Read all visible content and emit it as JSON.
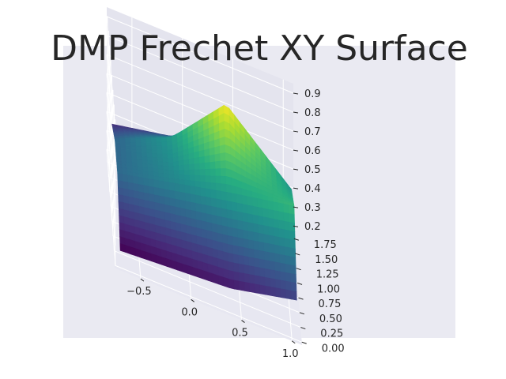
{
  "chart_data": {
    "type": "surface",
    "title": "DMP Frechet XY Surface",
    "xlabel": "",
    "ylabel": "",
    "zlabel": "",
    "xlim": [
      -0.75,
      1.1
    ],
    "ylim": [
      -0.05,
      1.9
    ],
    "zlim": [
      0.18,
      0.95
    ],
    "x_ticks": [
      -0.5,
      0.0,
      0.5,
      1.0
    ],
    "x_tick_labels": [
      "−0.5",
      "0.0",
      "0.5",
      "1.0"
    ],
    "y_ticks": [
      0.0,
      0.25,
      0.5,
      0.75,
      1.0,
      1.25,
      1.5,
      1.75
    ],
    "y_tick_labels": [
      "0.00",
      "0.25",
      "0.50",
      "0.75",
      "1.00",
      "1.25",
      "1.50",
      "1.75"
    ],
    "z_ticks": [
      0.2,
      0.3,
      0.4,
      0.5,
      0.6,
      0.7,
      0.8,
      0.9
    ],
    "z_tick_labels": [
      "0.2",
      "0.3",
      "0.4",
      "0.5",
      "0.6",
      "0.7",
      "0.8",
      "0.9"
    ],
    "colormap": "viridis",
    "grid": true,
    "x": [
      -0.7,
      -0.15,
      0.4,
      1.05
    ],
    "y": [
      0.0,
      0.6,
      1.2,
      1.85
    ],
    "z": [
      [
        0.27,
        0.29,
        0.31,
        0.39
      ],
      [
        0.49,
        0.56,
        0.63,
        0.7
      ],
      [
        0.48,
        0.61,
        0.91,
        0.6
      ],
      [
        0.36,
        0.42,
        0.49,
        0.28
      ]
    ]
  },
  "colors": {
    "pane_left": "#dcdde6",
    "pane_back": "#e4e4ee",
    "pane_floor": "#e7e7f1",
    "grid": "#ffffff",
    "text": "#262626",
    "viridis": [
      "#440154",
      "#472c7a",
      "#3b518b",
      "#2c718e",
      "#21908d",
      "#27ad81",
      "#5cc863",
      "#aadc32",
      "#fde725"
    ]
  }
}
